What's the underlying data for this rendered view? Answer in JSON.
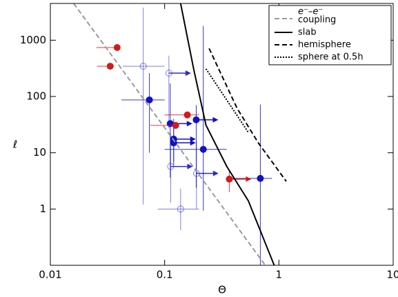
{
  "chart_data": {
    "type": "scatter",
    "log_x": true,
    "log_y": true,
    "xlabel": "Θ",
    "ylabel": "ℓ",
    "xlim": [
      0.01,
      10
    ],
    "ylim": [
      0.1,
      4500
    ],
    "xticks": [
      0.01,
      0.1,
      1,
      10
    ],
    "yticks": [
      1,
      10,
      100,
      1000
    ],
    "legend_position": "upper right",
    "lines": [
      {
        "name": [
          "e⁻–e⁻",
          "coupling"
        ],
        "color": "#999999",
        "style": "dashed",
        "x": [
          0.016,
          0.76
        ],
        "y": [
          4500,
          0.1
        ]
      },
      {
        "name": [
          "slab"
        ],
        "color": "#000000",
        "style": "solid",
        "x": [
          0.138,
          0.18,
          0.23,
          0.35,
          0.54,
          0.91
        ],
        "y": [
          4500,
          300,
          31,
          5.7,
          1.4,
          0.1
        ]
      },
      {
        "name": [
          "hemisphere"
        ],
        "color": "#000000",
        "style": "dashed",
        "x": [
          0.245,
          0.43,
          0.66,
          1.16
        ],
        "y": [
          715,
          62,
          15,
          3.1
        ]
      },
      {
        "name": [
          "sphere at 0.5h"
        ],
        "color": "#000000",
        "style": "dotted",
        "x": [
          0.23,
          0.54
        ],
        "y": [
          310,
          23
        ]
      }
    ],
    "points": [
      {
        "color": "#2a2ad8",
        "filled": false,
        "x": [
          0.065,
          0.109,
          0.113,
          0.19,
          0.138
        ],
        "y": [
          345,
          260,
          5.7,
          4.3,
          1.0
        ],
        "x_low": [
          0.043,
          null,
          null,
          null,
          0.087
        ],
        "x_high": [
          0.1,
          null,
          null,
          null,
          0.2
        ],
        "y_low": [
          1.2,
          27,
          1.3,
          1.0,
          0.42
        ],
        "y_high": [
          3800,
          530,
          22,
          16,
          2.3
        ],
        "x_lower_limit": [
          false,
          true,
          true,
          true,
          false
        ]
      },
      {
        "color": "#1010c8",
        "filled": true,
        "x": [
          0.0736,
          0.112,
          0.12,
          0.12,
          0.189,
          0.218,
          0.688
        ],
        "y": [
          87,
          33,
          17.5,
          15,
          38.5,
          11.5,
          3.5
        ],
        "x_low": [
          0.042,
          null,
          null,
          null,
          null,
          0.1,
          0.36
        ],
        "x_high": [
          0.1,
          null,
          null,
          null,
          null,
          0.35,
          0.87
        ],
        "y_low": [
          10,
          3.6,
          7,
          6,
          2.4,
          0.93,
          0.1
        ],
        "y_high": [
          260,
          170,
          40,
          30,
          70,
          1800,
          72
        ],
        "x_lower_limit": [
          false,
          true,
          true,
          true,
          true,
          false,
          false
        ]
      },
      {
        "color": "#d41a1a",
        "filled": true,
        "x": [
          0.0384,
          0.0334,
          0.158,
          0.125,
          0.368
        ],
        "y": [
          740,
          345,
          47,
          30.6,
          3.4
        ],
        "x_low": [
          0.0253,
          0.0256,
          0.1,
          0.075,
          null
        ],
        "x_high": [
          0.039,
          0.036,
          0.2,
          0.13,
          null
        ],
        "y_low": [
          null,
          null,
          null,
          null,
          2.0
        ],
        "y_high": [
          null,
          null,
          null,
          null,
          5.0
        ],
        "x_lower_limit": [
          false,
          false,
          false,
          false,
          true
        ]
      }
    ]
  }
}
